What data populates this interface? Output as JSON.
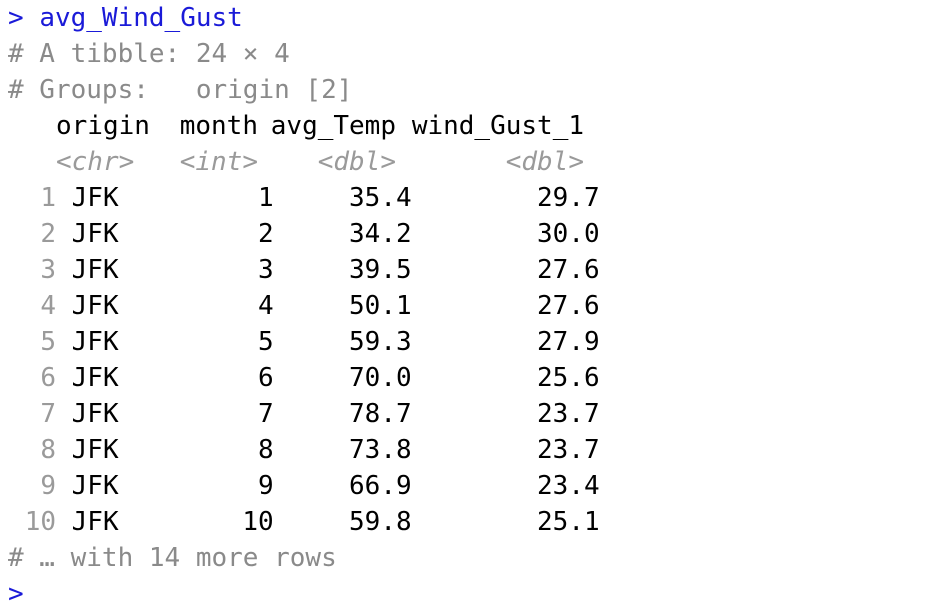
{
  "console": {
    "prompt_symbol": ">",
    "command": "avg_Wind_Gust",
    "tibble_info": "# A tibble: 24 × 4",
    "groups_info": "# Groups:   origin [2]",
    "footer": "# … with 14 more rows"
  },
  "table": {
    "columns": [
      {
        "name": "origin",
        "type": "<chr>"
      },
      {
        "name": "month",
        "type": "<int>"
      },
      {
        "name": "avg_Temp",
        "type": "<dbl>"
      },
      {
        "name": "wind_Gust_1",
        "type": "<dbl>"
      }
    ],
    "rows": [
      {
        "num": "1",
        "origin": "JFK",
        "month": "1",
        "avg_Temp": "35.4",
        "wind_Gust_1": "29.7"
      },
      {
        "num": "2",
        "origin": "JFK",
        "month": "2",
        "avg_Temp": "34.2",
        "wind_Gust_1": "30.0"
      },
      {
        "num": "3",
        "origin": "JFK",
        "month": "3",
        "avg_Temp": "39.5",
        "wind_Gust_1": "27.6"
      },
      {
        "num": "4",
        "origin": "JFK",
        "month": "4",
        "avg_Temp": "50.1",
        "wind_Gust_1": "27.6"
      },
      {
        "num": "5",
        "origin": "JFK",
        "month": "5",
        "avg_Temp": "59.3",
        "wind_Gust_1": "27.9"
      },
      {
        "num": "6",
        "origin": "JFK",
        "month": "6",
        "avg_Temp": "70.0",
        "wind_Gust_1": "25.6"
      },
      {
        "num": "7",
        "origin": "JFK",
        "month": "7",
        "avg_Temp": "78.7",
        "wind_Gust_1": "23.7"
      },
      {
        "num": "8",
        "origin": "JFK",
        "month": "8",
        "avg_Temp": "73.8",
        "wind_Gust_1": "23.7"
      },
      {
        "num": "9",
        "origin": "JFK",
        "month": "9",
        "avg_Temp": "66.9",
        "wind_Gust_1": "23.4"
      },
      {
        "num": "10",
        "origin": "JFK",
        "month": "10",
        "avg_Temp": "59.8",
        "wind_Gust_1": "25.1"
      }
    ]
  },
  "colors": {
    "prompt": "#1a1ad8",
    "meta": "#8a8a8a"
  }
}
